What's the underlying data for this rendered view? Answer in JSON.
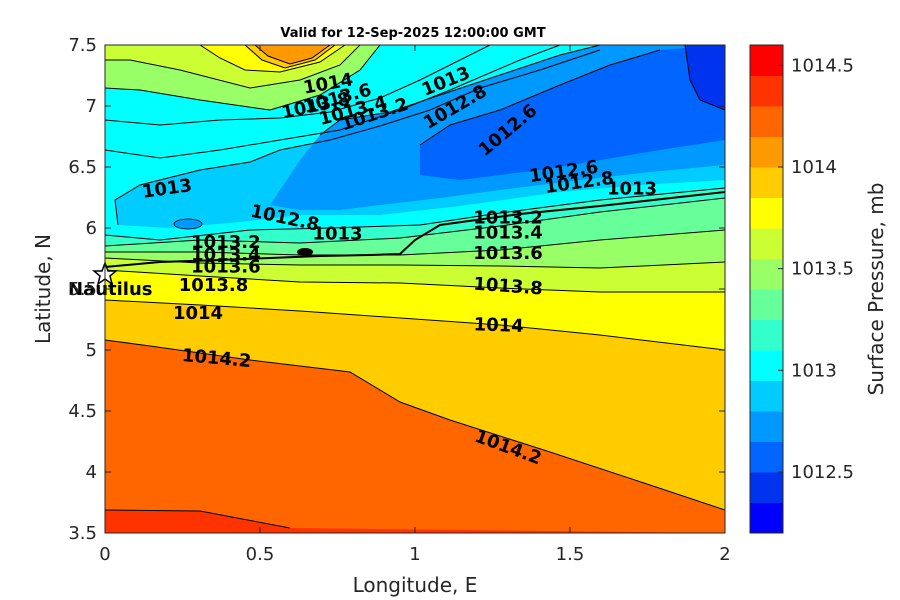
{
  "chart_data": {
    "type": "heatmap",
    "subtype": "filled-contour",
    "title": "Valid for 12-Sep-2025 12:00:00 GMT",
    "xlabel": "Longitude, E",
    "ylabel": "Latitude, N",
    "colorbar_label": "Surface Pressure, mb",
    "xlim": [
      0,
      2
    ],
    "ylim": [
      3.5,
      7.5
    ],
    "xticks": [
      "0",
      "0.5",
      "1",
      "1.5",
      "2"
    ],
    "yticks": [
      "3.5",
      "4",
      "4.5",
      "5",
      "5.5",
      "6",
      "6.5",
      "7",
      "7.5"
    ],
    "colorbar": {
      "range": [
        1012.2,
        1014.6
      ],
      "ticks": [
        "1012.5",
        "1013",
        "1013.5",
        "1014",
        "1014.5"
      ],
      "levels": [
        1012.2,
        1012.4,
        1012.6,
        1012.8,
        1013.0,
        1013.2,
        1013.4,
        1013.6,
        1013.8,
        1014.0,
        1014.2,
        1014.4,
        1014.6
      ],
      "colors": [
        "#0000ff",
        "#0033ee",
        "#0066ff",
        "#0099ff",
        "#00ccff",
        "#00ffff",
        "#33ffcc",
        "#66ff99",
        "#99ff66",
        "#ccff33",
        "#ffff00",
        "#ffcc00",
        "#ff9900",
        "#ff6600",
        "#ff3300",
        "#ff0000"
      ]
    },
    "contour_labels": [
      {
        "text": "1014",
        "x": 0.72,
        "y": 7.18,
        "angle": -10
      },
      {
        "text": "1013.8",
        "x": 0.68,
        "y": 7.0,
        "angle": -12
      },
      {
        "text": "1013.6",
        "x": 0.75,
        "y": 7.06,
        "angle": -15
      },
      {
        "text": "1013.4",
        "x": 0.8,
        "y": 6.96,
        "angle": -15
      },
      {
        "text": "1013.2",
        "x": 0.87,
        "y": 6.93,
        "angle": -18
      },
      {
        "text": "1013",
        "x": 1.1,
        "y": 7.2,
        "angle": -22
      },
      {
        "text": "1012.8",
        "x": 1.13,
        "y": 6.99,
        "angle": -30
      },
      {
        "text": "1012.6",
        "x": 1.3,
        "y": 6.8,
        "angle": -40
      },
      {
        "text": "1012.6",
        "x": 1.48,
        "y": 6.46,
        "angle": -8
      },
      {
        "text": "1012.8",
        "x": 1.53,
        "y": 6.37,
        "angle": -8
      },
      {
        "text": "1013",
        "x": 1.7,
        "y": 6.32,
        "angle": 0
      },
      {
        "text": "1013",
        "x": 0.2,
        "y": 6.32,
        "angle": -8
      },
      {
        "text": "1012.8",
        "x": 0.58,
        "y": 6.08,
        "angle": 12
      },
      {
        "text": "1013",
        "x": 0.75,
        "y": 5.95,
        "angle": 0
      },
      {
        "text": "1013.2",
        "x": 1.3,
        "y": 6.08,
        "angle": 0
      },
      {
        "text": "1013.4",
        "x": 1.3,
        "y": 5.96,
        "angle": 0
      },
      {
        "text": "1013.6",
        "x": 1.3,
        "y": 5.79,
        "angle": 0
      },
      {
        "text": "1013.2",
        "x": 0.39,
        "y": 5.88,
        "angle": 0
      },
      {
        "text": "1013.4",
        "x": 0.39,
        "y": 5.78,
        "angle": 0
      },
      {
        "text": "1013.6",
        "x": 0.39,
        "y": 5.68,
        "angle": 0
      },
      {
        "text": "1013.8",
        "x": 0.35,
        "y": 5.53,
        "angle": 0
      },
      {
        "text": "1013.8",
        "x": 1.3,
        "y": 5.52,
        "angle": 4
      },
      {
        "text": "1014",
        "x": 0.3,
        "y": 5.3,
        "angle": 0
      },
      {
        "text": "1014",
        "x": 1.27,
        "y": 5.2,
        "angle": 2
      },
      {
        "text": "1014.2",
        "x": 0.36,
        "y": 4.93,
        "angle": 5
      },
      {
        "text": "1014.2",
        "x": 1.3,
        "y": 4.2,
        "angle": 20
      }
    ],
    "site": {
      "name": "Nautilus",
      "lon": 0.0,
      "lat": 5.63
    }
  }
}
